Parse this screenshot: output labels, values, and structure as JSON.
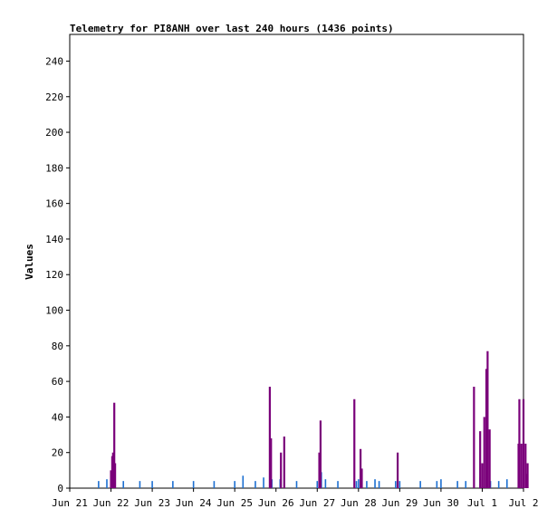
{
  "chart_data": {
    "type": "bar",
    "title": "Telemetry for PI8ANH over last 240 hours (1436 points)",
    "ylabel": "Values",
    "xlabel": "",
    "ylim": [
      0,
      255
    ],
    "yticks": [
      0,
      20,
      40,
      60,
      80,
      100,
      120,
      140,
      160,
      180,
      200,
      220,
      240
    ],
    "xlim": [
      "2023-06-21 00:00",
      "2023-07-02 00:00"
    ],
    "xticks": [
      "Jun 21",
      "Jun 22",
      "Jun 23",
      "Jun 24",
      "Jun 25",
      "Jun 26",
      "Jun 27",
      "Jun 28",
      "Jun 29",
      "Jun 30",
      "Jul 1",
      "Jul 2"
    ],
    "grid": false,
    "legend": "none",
    "series": [
      {
        "color": "#1c6fd1",
        "points": [
          [
            0.7,
            4
          ],
          [
            0.9,
            5
          ],
          [
            1.0,
            4
          ],
          [
            1.3,
            4
          ],
          [
            1.7,
            4
          ],
          [
            2.0,
            4
          ],
          [
            2.5,
            4
          ],
          [
            3.0,
            4
          ],
          [
            3.5,
            4
          ],
          [
            4.0,
            4
          ],
          [
            4.2,
            7
          ],
          [
            4.5,
            4
          ],
          [
            4.7,
            6
          ],
          [
            4.9,
            5
          ],
          [
            5.1,
            5
          ],
          [
            5.5,
            4
          ],
          [
            6.0,
            4
          ],
          [
            6.1,
            9
          ],
          [
            6.2,
            5
          ],
          [
            6.5,
            4
          ],
          [
            6.95,
            4
          ],
          [
            7.0,
            5
          ],
          [
            7.2,
            4
          ],
          [
            7.4,
            5
          ],
          [
            7.5,
            4
          ],
          [
            7.9,
            4
          ],
          [
            8.0,
            4
          ],
          [
            8.5,
            4
          ],
          [
            8.9,
            4
          ],
          [
            9.0,
            5
          ],
          [
            9.4,
            4
          ],
          [
            9.6,
            4
          ],
          [
            9.8,
            7
          ],
          [
            9.95,
            6
          ],
          [
            10.0,
            4
          ],
          [
            10.2,
            4
          ],
          [
            10.4,
            4
          ],
          [
            10.6,
            5
          ],
          [
            11.0,
            4
          ]
        ]
      },
      {
        "color": "#7a007a",
        "points": [
          [
            1.0,
            10
          ],
          [
            1.03,
            18
          ],
          [
            1.05,
            20
          ],
          [
            1.08,
            48
          ],
          [
            1.1,
            14
          ],
          [
            4.85,
            57
          ],
          [
            4.88,
            28
          ],
          [
            5.12,
            20
          ],
          [
            5.2,
            29
          ],
          [
            6.05,
            20
          ],
          [
            6.08,
            38
          ],
          [
            6.9,
            50
          ],
          [
            7.05,
            22
          ],
          [
            7.08,
            11
          ],
          [
            7.95,
            20
          ],
          [
            9.8,
            57
          ],
          [
            9.95,
            32
          ],
          [
            10.0,
            14
          ],
          [
            10.05,
            40
          ],
          [
            10.1,
            67
          ],
          [
            10.13,
            77
          ],
          [
            10.18,
            33
          ],
          [
            10.88,
            25
          ],
          [
            10.9,
            50
          ],
          [
            10.95,
            25
          ],
          [
            11.0,
            50
          ],
          [
            11.05,
            25
          ],
          [
            11.08,
            8
          ],
          [
            11.1,
            14
          ]
        ]
      }
    ]
  }
}
